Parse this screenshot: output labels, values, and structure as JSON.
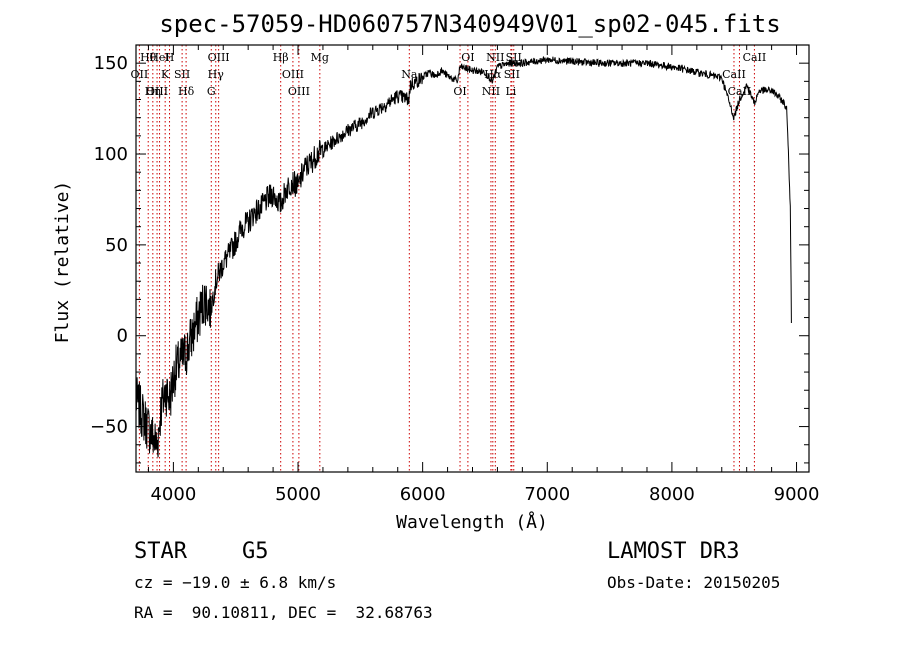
{
  "chart_data": {
    "type": "line",
    "title": "spec-57059-HD060757N340949V01_sp02-045.fits",
    "xlabel": "Wavelength (Å)",
    "ylabel": "Flux (relative)",
    "xlim": [
      3700,
      9100
    ],
    "ylim": [
      -75,
      160
    ],
    "x_ticks": [
      4000,
      5000,
      6000,
      7000,
      8000,
      9000
    ],
    "y_ticks": [
      -50,
      0,
      50,
      100,
      150
    ],
    "spectrum_anchor_points": {
      "x": [
        3700,
        3760,
        3830,
        3870,
        3900,
        3940,
        3970,
        4010,
        4050,
        4100,
        4150,
        4200,
        4250,
        4300,
        4340,
        4400,
        4450,
        4500,
        4550,
        4600,
        4650,
        4700,
        4750,
        4800,
        4860,
        4900,
        4950,
        5000,
        5050,
        5100,
        5150,
        5200,
        5250,
        5300,
        5400,
        5500,
        5600,
        5700,
        5800,
        5890,
        5900,
        5950,
        6000,
        6050,
        6100,
        6150,
        6200,
        6280,
        6300,
        6400,
        6500,
        6562,
        6600,
        6700,
        6800,
        6900,
        7000,
        7200,
        7400,
        7600,
        7800,
        8000,
        8200,
        8400,
        8498,
        8542,
        8600,
        8662,
        8700,
        8800,
        8850,
        8900,
        8920,
        8930,
        8950,
        8960
      ],
      "y": [
        -35,
        -45,
        -55,
        -60,
        -40,
        -30,
        -35,
        -20,
        -15,
        -10,
        0,
        10,
        20,
        15,
        30,
        40,
        45,
        52,
        60,
        62,
        68,
        70,
        75,
        78,
        72,
        80,
        85,
        82,
        92,
        95,
        100,
        102,
        105,
        108,
        113,
        117,
        123,
        127,
        132,
        130,
        138,
        140,
        142,
        145,
        143,
        146,
        143,
        140,
        148,
        146,
        145,
        140,
        148,
        150,
        150,
        151,
        152,
        151,
        150,
        150,
        150,
        148,
        145,
        142,
        120,
        130,
        138,
        128,
        135,
        135,
        132,
        128,
        125,
        110,
        70,
        0
      ]
    },
    "spectral_lines": [
      {
        "name": "Hθ",
        "wavelength": 3798
      },
      {
        "name": "OII",
        "wavelength": 3727
      },
      {
        "name": "OIII",
        "wavelength": 3869
      },
      {
        "name": "HeI",
        "wavelength": 3889
      },
      {
        "name": "K",
        "wavelength": 3934
      },
      {
        "name": "Hη",
        "wavelength": 3835
      },
      {
        "name": "H",
        "wavelength": 3969
      },
      {
        "name": "SII",
        "wavelength": 4070
      },
      {
        "name": "Hδ",
        "wavelength": 4102
      },
      {
        "name": "OIII",
        "wavelength": 4363
      },
      {
        "name": "Hγ",
        "wavelength": 4340
      },
      {
        "name": "G",
        "wavelength": 4304
      },
      {
        "name": "Hβ",
        "wavelength": 4861
      },
      {
        "name": "OIII",
        "wavelength": 4959
      },
      {
        "name": "OIII",
        "wavelength": 5007
      },
      {
        "name": "Mg",
        "wavelength": 5175
      },
      {
        "name": "Na",
        "wavelength": 5893
      },
      {
        "name": "OI",
        "wavelength": 6300
      },
      {
        "name": "OI",
        "wavelength": 6363
      },
      {
        "name": "Hα",
        "wavelength": 6563
      },
      {
        "name": "NII",
        "wavelength": 6548
      },
      {
        "name": "NII",
        "wavelength": 6583
      },
      {
        "name": "SII",
        "wavelength": 6716
      },
      {
        "name": "Li",
        "wavelength": 6708
      },
      {
        "name": "SII",
        "wavelength": 6731
      },
      {
        "name": "CaII",
        "wavelength": 8498
      },
      {
        "name": "CaII",
        "wavelength": 8542
      },
      {
        "name": "CaII",
        "wavelength": 8662
      }
    ],
    "annotations": {
      "object_class": "STAR",
      "subclass": "G5",
      "survey": "LAMOST DR3",
      "redshift": "cz = −19.0 ± 6.8 km/s",
      "obs_date": "Obs-Date: 20150205",
      "coordinates": "RA =  90.10811, DEC =  32.68763"
    }
  },
  "colors": {
    "spectrum": "#000000",
    "line_markers": "#cc0000",
    "axes": "#000000"
  }
}
